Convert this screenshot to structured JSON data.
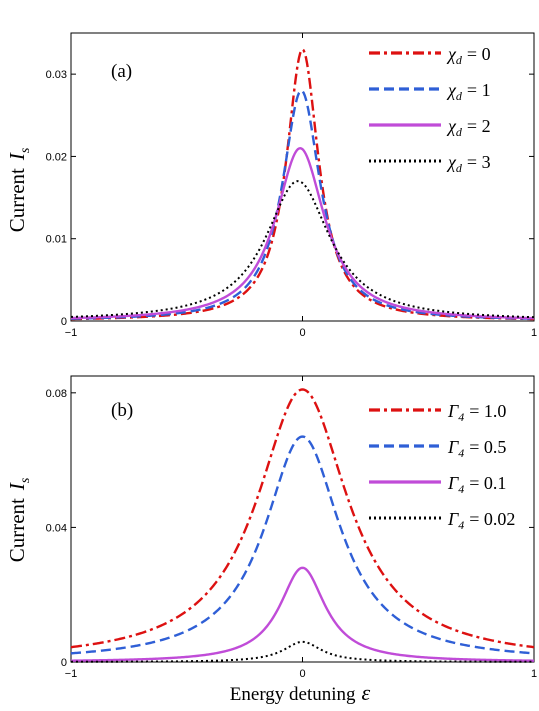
{
  "chart_data": [
    {
      "type": "line",
      "panel_label": "(a)",
      "ylabel": "Current",
      "ylabel_symbol": "I",
      "ylabel_sub": "s",
      "xlabel": "",
      "xlim": [
        -1,
        1
      ],
      "ylim": [
        0,
        0.035
      ],
      "xticks": [
        -1,
        0,
        1
      ],
      "yticks": [
        0,
        0.01,
        0.02,
        0.03
      ],
      "xtick_labels": [
        "−1",
        "0",
        "1"
      ],
      "ytick_labels": [
        "0",
        "0.01",
        "0.02",
        "0.03"
      ],
      "legend_placement": "top-right",
      "series": [
        {
          "name": "χd = 0",
          "legend_symbol": "χ",
          "legend_sub": "d",
          "legend_value": "= 0",
          "color": "#dd1111",
          "dash": "11,4,3,4",
          "peak": 0.033,
          "center": 0.0,
          "width": 0.085
        },
        {
          "name": "χd = 1",
          "legend_symbol": "χ",
          "legend_sub": "d",
          "legend_value": "= 1",
          "color": "#2f5fd6",
          "dash": "10,5",
          "peak": 0.028,
          "center": -0.005,
          "width": 0.1
        },
        {
          "name": "χd = 2",
          "legend_symbol": "χ",
          "legend_sub": "d",
          "legend_value": "= 2",
          "color": "#c04cd8",
          "dash": "",
          "peak": 0.021,
          "center": -0.01,
          "width": 0.13
        },
        {
          "name": "χd = 3",
          "legend_symbol": "χ",
          "legend_sub": "d",
          "legend_value": "= 3",
          "color": "#000000",
          "dash": "2,3",
          "peak": 0.017,
          "center": -0.02,
          "width": 0.17
        }
      ]
    },
    {
      "type": "line",
      "panel_label": "(b)",
      "ylabel": "Current",
      "ylabel_symbol": "I",
      "ylabel_sub": "s",
      "xlabel": "Energy detuning",
      "xlabel_symbol": "ε",
      "xlim": [
        -1,
        1
      ],
      "ylim": [
        0,
        0.085
      ],
      "xticks": [
        -1,
        0,
        1
      ],
      "yticks": [
        0,
        0.04,
        0.08
      ],
      "xtick_labels": [
        "−1",
        "0",
        "1"
      ],
      "ytick_labels": [
        "0",
        "0.04",
        "0.08"
      ],
      "legend_placement": "top-right",
      "series": [
        {
          "name": "Γ4 = 1.0",
          "legend_symbol": "Γ",
          "legend_sub": "4",
          "legend_value": "= 1.0",
          "color": "#dd1111",
          "dash": "11,4,3,4",
          "peak": 0.081,
          "center": 0.0,
          "width": 0.24
        },
        {
          "name": "Γ4 = 0.5",
          "legend_symbol": "Γ",
          "legend_sub": "4",
          "legend_value": "= 0.5",
          "color": "#2f5fd6",
          "dash": "10,5",
          "peak": 0.067,
          "center": 0.0,
          "width": 0.2
        },
        {
          "name": "Γ4 = 0.1",
          "legend_symbol": "Γ",
          "legend_sub": "4",
          "legend_value": "= 0.1",
          "color": "#c04cd8",
          "dash": "",
          "peak": 0.028,
          "center": 0.0,
          "width": 0.12
        },
        {
          "name": "Γ4 = 0.02",
          "legend_symbol": "Γ",
          "legend_sub": "4",
          "legend_value": "= 0.02",
          "color": "#000000",
          "dash": "2,3",
          "peak": 0.006,
          "center": 0.0,
          "width": 0.1
        }
      ]
    }
  ]
}
